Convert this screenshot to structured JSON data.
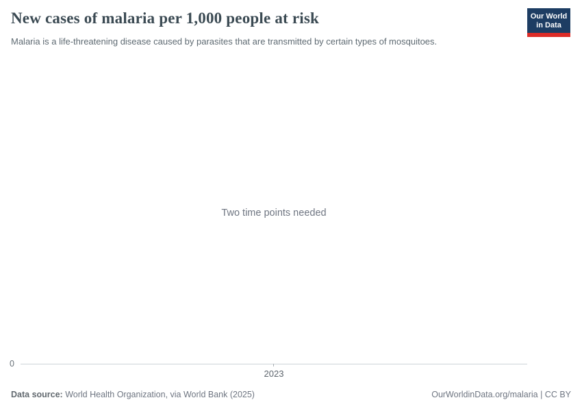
{
  "header": {
    "title": "New cases of malaria per 1,000 people at risk",
    "subtitle": "Malaria is a life-threatening disease caused by parasites that are transmitted by certain types of mosquitoes."
  },
  "logo": {
    "line1": "Our World",
    "line2": "in Data",
    "background": "#1d3d63",
    "accent": "#dc2c27"
  },
  "chart": {
    "empty_message": "Two time points needed",
    "y_min_label": "0",
    "x_tick_label": "2023"
  },
  "footer": {
    "source_label": "Data source:",
    "source_value": "World Health Organization, via World Bank (2025)",
    "credit": "OurWorldinData.org/malaria | CC BY"
  },
  "chart_data": {
    "type": "line",
    "title": "New cases of malaria per 1,000 people at risk",
    "subtitle": "Malaria is a life-threatening disease caused by parasites that are transmitted by certain types of mosquitoes.",
    "x_ticks": [
      "2023"
    ],
    "series": [],
    "values": [],
    "y_axis": {
      "min": 0,
      "min_label": "0"
    },
    "grid": false,
    "legend": "none",
    "empty_message": "Two time points needed"
  }
}
